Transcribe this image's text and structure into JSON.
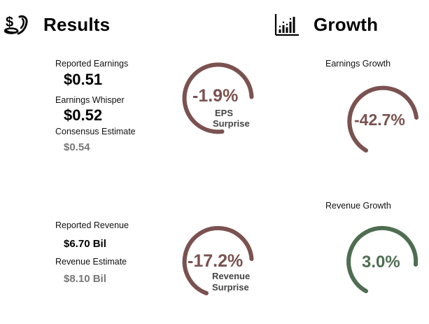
{
  "colors": {
    "negative": "#7a5250",
    "positive": "#4e6e52",
    "track": "#ffffff",
    "grey_text": "#777777"
  },
  "results": {
    "icon": "money-hand-icon",
    "title": "Results",
    "reported_earnings_label": "Reported Earnings",
    "reported_earnings_value": "$0.51",
    "earnings_whisper_label": "Earnings Whisper",
    "earnings_whisper_value": "$0.52",
    "consensus_label": "Consensus Estimate",
    "consensus_value": "$0.54",
    "reported_revenue_label": "Reported Revenue",
    "reported_revenue_value": "$6.70 Bil",
    "revenue_estimate_label": "Revenue Estimate",
    "revenue_estimate_value": "$8.10 Bil"
  },
  "growth": {
    "icon": "bar-chart-icon",
    "title": "Growth",
    "earnings_growth_label": "Earnings Growth",
    "revenue_growth_label": "Revenue Growth"
  },
  "gauges": {
    "eps_surprise": {
      "value": "-1.9%",
      "caption_line1": "EPS",
      "caption_line2": "Surprise",
      "color": "#7a5250"
    },
    "revenue_surprise": {
      "value": "-17.2%",
      "caption_line1": "Revenue",
      "caption_line2": "Surprise",
      "color": "#7a5250"
    },
    "earnings_growth": {
      "value": "-42.7%",
      "color": "#7a5250"
    },
    "revenue_growth": {
      "value": "3.0%",
      "color": "#4e6e52"
    }
  }
}
